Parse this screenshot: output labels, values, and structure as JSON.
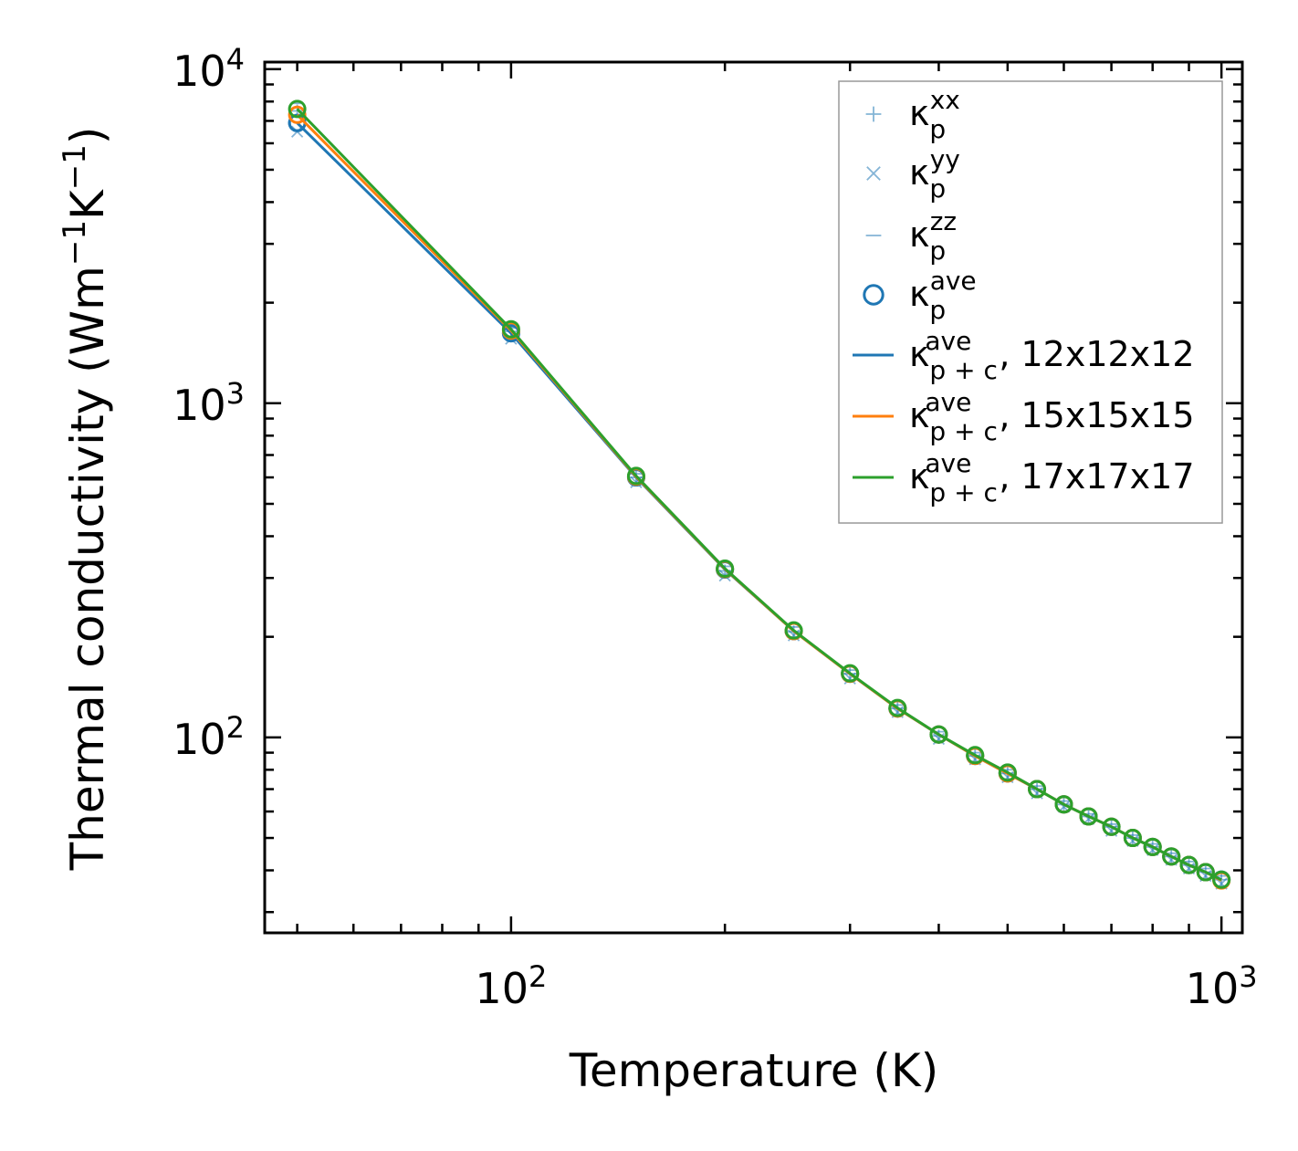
{
  "chart_data": {
    "type": "line",
    "xscale": "log",
    "yscale": "log",
    "xlim": [
      45,
      1070
    ],
    "ylim": [
      26,
      10500
    ],
    "xlabel": "Temperature (K)",
    "ylabel": {
      "base": "Thermal conductivity (Wm",
      "exp1": "−1",
      "mid": "K",
      "exp2": "−1",
      "end": ")"
    },
    "xticks": [
      {
        "base": "10",
        "exp": "2",
        "value": 100
      },
      {
        "base": "10",
        "exp": "3",
        "value": 1000
      }
    ],
    "yticks": [
      {
        "base": "10",
        "exp": "2",
        "value": 100
      },
      {
        "base": "10",
        "exp": "3",
        "value": 1000
      },
      {
        "base": "10",
        "exp": "4",
        "value": 10000
      }
    ],
    "x": [
      50,
      100,
      150,
      200,
      250,
      300,
      350,
      400,
      450,
      500,
      550,
      600,
      650,
      700,
      750,
      800,
      850,
      900,
      950,
      1000
    ],
    "scatter_series": [
      {
        "name": "kappa_p_xx",
        "marker": "plus",
        "color": "#1f77b4",
        "values": [
          7500,
          1640,
          600,
          315,
          207,
          155,
          122,
          101,
          88,
          78,
          70,
          63,
          58,
          54,
          50,
          47,
          44,
          41.5,
          39.5,
          37.5
        ]
      },
      {
        "name": "kappa_p_yy",
        "marker": "x",
        "color": "#1f77b4",
        "values": [
          6500,
          1560,
          580,
          305,
          202,
          150,
          119,
          99,
          86,
          76,
          68,
          62,
          57,
          52.5,
          49,
          46,
          43,
          40.5,
          38.5,
          36.5
        ]
      },
      {
        "name": "kappa_p_zz",
        "marker": "dash",
        "color": "#1f77b4",
        "values": [
          7900,
          1680,
          615,
          325,
          214,
          159,
          125,
          104,
          90,
          80,
          71.5,
          64.5,
          59,
          55,
          51,
          48,
          45,
          42.5,
          40.5,
          38.5
        ]
      },
      {
        "name": "kappa_p_ave",
        "marker": "circle",
        "color": "#1f77b4",
        "values": [
          6900,
          1620,
          600,
          318,
          208,
          155,
          122,
          102,
          88,
          78,
          70,
          63,
          58,
          54,
          50,
          47,
          44,
          41.5,
          39.5,
          37.5
        ]
      }
    ],
    "line_series": [
      {
        "name": "12x12x12",
        "color": "#1f77b4",
        "values": [
          6900,
          1620,
          600,
          318,
          208,
          155,
          122,
          102,
          88,
          78,
          70,
          63,
          58,
          54,
          50,
          47,
          44,
          41.5,
          39.5,
          37.5
        ]
      },
      {
        "name": "15x15x15",
        "color": "#ff7f0e",
        "values": [
          7300,
          1650,
          603,
          319,
          208,
          155,
          122,
          102,
          88,
          78,
          70,
          63,
          58,
          54,
          50,
          47,
          44,
          41.5,
          39.5,
          37.3
        ]
      },
      {
        "name": "17x17x17",
        "color": "#2ca02c",
        "values": [
          7600,
          1665,
          606,
          320,
          209,
          155.5,
          122.5,
          102,
          88.5,
          78.5,
          70,
          63,
          58,
          54,
          50,
          47,
          44,
          41.5,
          39.5,
          37.5
        ]
      }
    ],
    "legend": {
      "placement": "top-right",
      "entries": [
        {
          "symbol": "plus",
          "color": "#1f77b4",
          "sym": "κ",
          "sub": "p",
          "sup": "xx",
          "suffix": ""
        },
        {
          "symbol": "x",
          "color": "#1f77b4",
          "sym": "κ",
          "sub": "p",
          "sup": "yy",
          "suffix": ""
        },
        {
          "symbol": "dash",
          "color": "#1f77b4",
          "sym": "κ",
          "sub": "p",
          "sup": "zz",
          "suffix": ""
        },
        {
          "symbol": "circle",
          "color": "#1f77b4",
          "sym": "κ",
          "sub": "p",
          "sup": "ave",
          "suffix": ""
        },
        {
          "symbol": "line",
          "color": "#1f77b4",
          "sym": "κ",
          "sub": "p + c",
          "sup": "ave",
          "suffix": ", 12x12x12"
        },
        {
          "symbol": "line",
          "color": "#ff7f0e",
          "sym": "κ",
          "sub": "p + c",
          "sup": "ave",
          "suffix": ", 15x15x15"
        },
        {
          "symbol": "line",
          "color": "#2ca02c",
          "sym": "κ",
          "sub": "p + c",
          "sup": "ave",
          "suffix": ", 17x17x17"
        }
      ]
    }
  }
}
